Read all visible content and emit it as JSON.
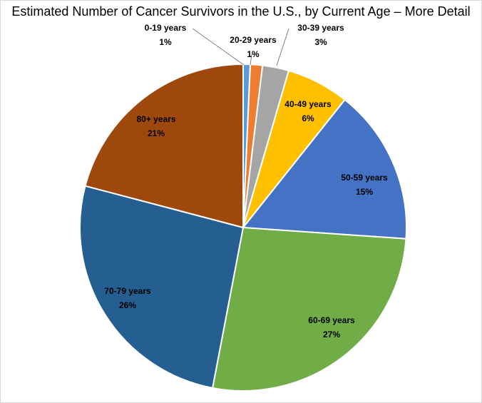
{
  "chart_data": {
    "type": "pie",
    "title": "Estimated Number of Cancer Survivors in the U.S., by Current Age – More Detail",
    "slices": [
      {
        "label": "0-19 years",
        "value": 0.7,
        "value_label": "1%",
        "color": "#5b9bd5"
      },
      {
        "label": "20-29 years",
        "value": 1.2,
        "value_label": "1%",
        "color": "#ed7d31"
      },
      {
        "label": "30-39 years",
        "value": 2.6,
        "value_label": "3%",
        "color": "#a5a5a5"
      },
      {
        "label": "40-49 years",
        "value": 6.2,
        "value_label": "6%",
        "color": "#ffc000"
      },
      {
        "label": "50-59 years",
        "value": 15.4,
        "value_label": "15%",
        "color": "#4472c4"
      },
      {
        "label": "60-69 years",
        "value": 26.9,
        "value_label": "27%",
        "color": "#70ad47"
      },
      {
        "label": "70-79 years",
        "value": 26.1,
        "value_label": "26%",
        "color": "#255e91"
      },
      {
        "label": "80+ years",
        "value": 20.9,
        "value_label": "21%",
        "color": "#9e480e"
      }
    ],
    "start_angle": "12 o'clock",
    "direction": "clockwise",
    "legend": "none",
    "data_labels": "category name and percentage"
  }
}
